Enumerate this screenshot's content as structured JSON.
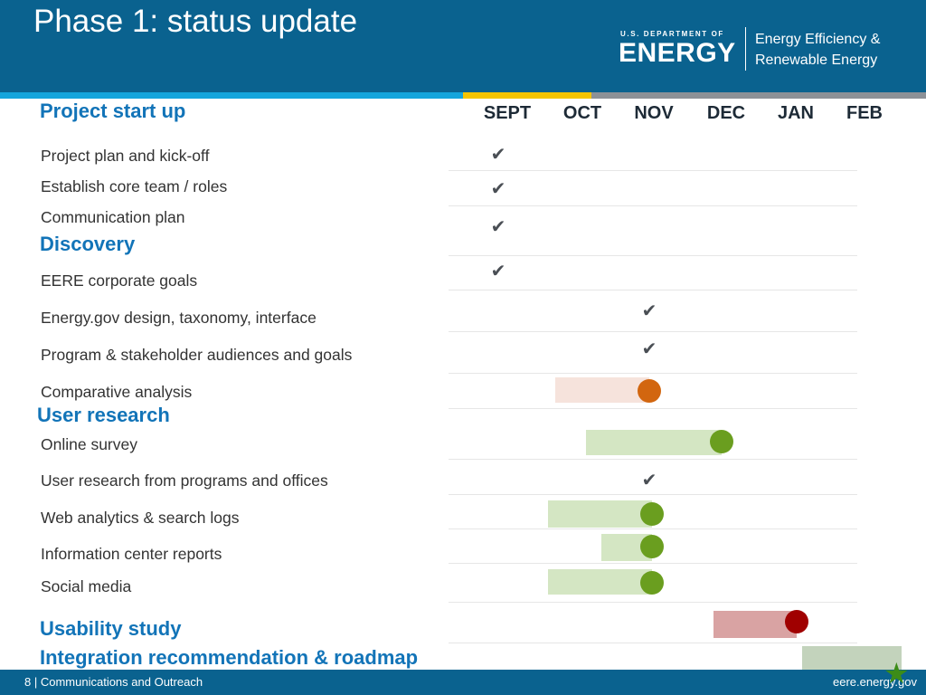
{
  "header": {
    "title": "Phase 1: status update",
    "logo_small": "U.S. DEPARTMENT OF",
    "logo_big": "ENERGY",
    "office_line1": "Energy Efficiency &",
    "office_line2": "Renewable Energy"
  },
  "timeline": {
    "months": [
      "SEPT",
      "OCT",
      "NOV",
      "DEC",
      "JAN",
      "FEB"
    ]
  },
  "sections": {
    "start_up": "Project start up",
    "discovery": "Discovery",
    "user_research": "User research",
    "usability": "Usability study",
    "integration": "Integration recommendation & roadmap"
  },
  "tasks": {
    "plan_kickoff": "Project plan and kick-off",
    "core_team": "Establish core team / roles",
    "comm_plan": "Communication plan",
    "eere_goals": "EERE corporate goals",
    "energy_gov": "Energy.gov design, taxonomy, interface",
    "audiences": "Program & stakeholder audiences and goals",
    "comparative": "Comparative analysis",
    "online_survey": "Online survey",
    "programs_offices": "User research from programs and offices",
    "web_analytics": "Web analytics & search logs",
    "info_center": "Information center reports",
    "social_media": "Social media"
  },
  "status_icons": {
    "complete": "checkmark-icon",
    "in_progress": "dot-icon",
    "milestone": "star-icon"
  },
  "colors": {
    "header_blue": "#0a628f",
    "section_blue": "#1274b8",
    "orange_dot": "#d2660f",
    "orange_bar": "#f6e3dc",
    "green_dot": "#6a9e1f",
    "green_bar": "#d4e6c3",
    "red_dot": "#a00000",
    "red_bar": "#d9a3a3",
    "gray_bar": "#c3d3bc"
  },
  "footer": {
    "page_number": "8",
    "left_text": "| Communications and Outreach",
    "right_text": "eere.energy.gov"
  }
}
